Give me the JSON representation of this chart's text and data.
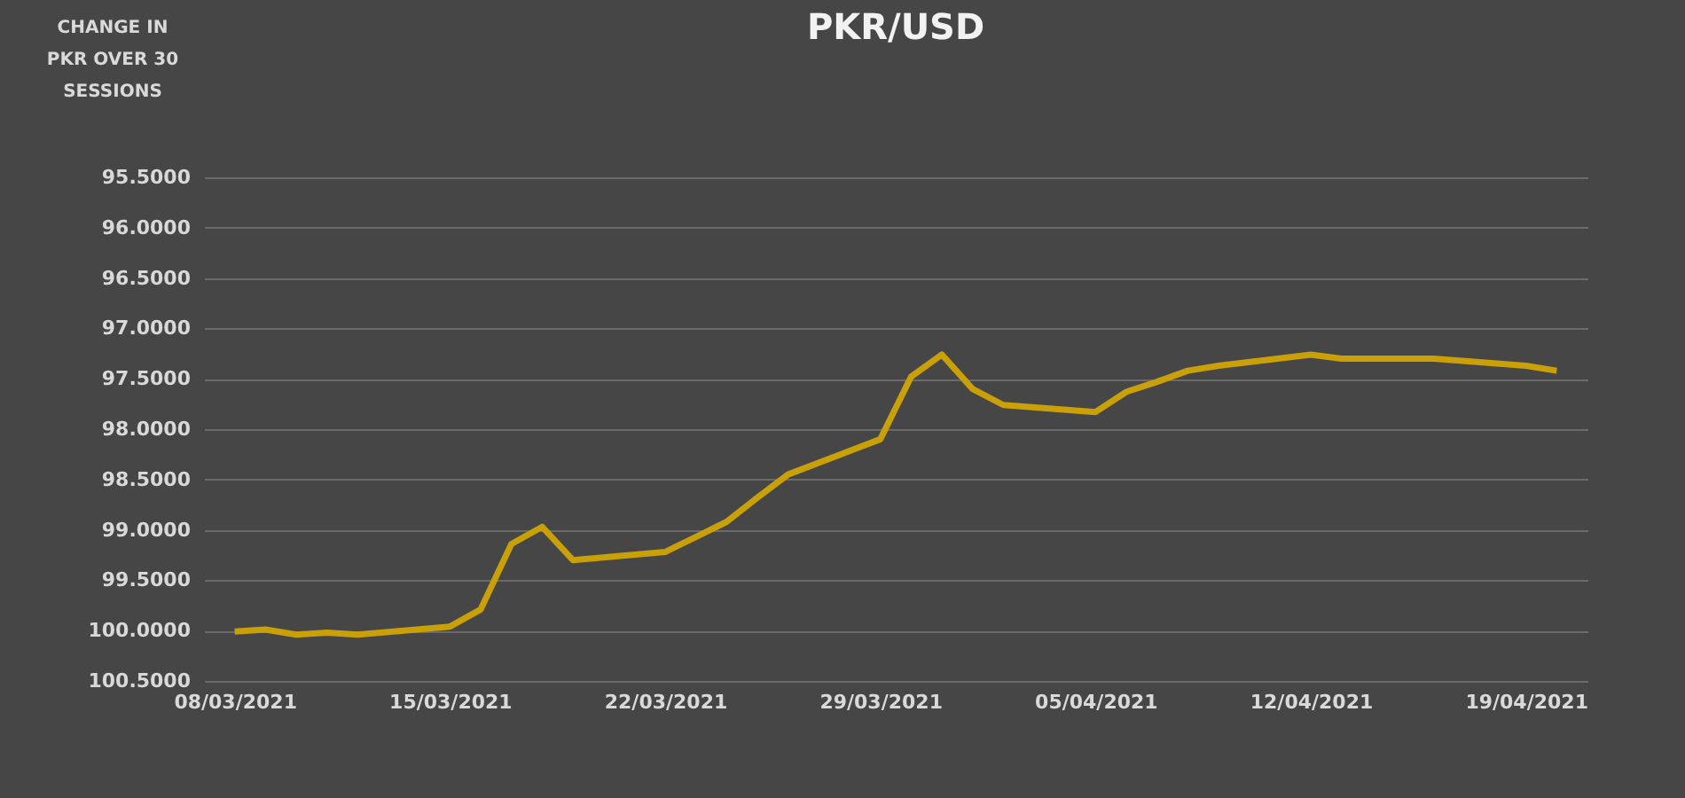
{
  "chart_data": {
    "type": "line",
    "title": "PKR/USD",
    "ylabel": "CHANGE IN PKR OVER 30 SESSIONS",
    "x": [
      "2021-03-08",
      "2021-03-09",
      "2021-03-10",
      "2021-03-11",
      "2021-03-12",
      "2021-03-15",
      "2021-03-16",
      "2021-03-17",
      "2021-03-18",
      "2021-03-19",
      "2021-03-22",
      "2021-03-23",
      "2021-03-24",
      "2021-03-25",
      "2021-03-26",
      "2021-03-29",
      "2021-03-30",
      "2021-03-31",
      "2021-04-01",
      "2021-04-02",
      "2021-04-05",
      "2021-04-06",
      "2021-04-07",
      "2021-04-08",
      "2021-04-09",
      "2021-04-12",
      "2021-04-13",
      "2021-04-14",
      "2021-04-15",
      "2021-04-16",
      "2021-04-19",
      "2021-04-20"
    ],
    "series": [
      {
        "color": "#c9a008",
        "values": [
          100.01,
          99.99,
          100.04,
          100.02,
          100.04,
          99.96,
          99.79,
          99.14,
          98.97,
          99.3,
          99.22,
          99.07,
          98.92,
          98.68,
          98.45,
          98.1,
          97.48,
          97.26,
          97.6,
          97.76,
          97.83,
          97.63,
          97.53,
          97.42,
          97.37,
          97.26,
          97.3,
          97.3,
          97.3,
          97.3,
          97.37,
          97.42
        ]
      }
    ],
    "xlim": [
      "2021-03-07",
      "2021-04-21"
    ],
    "xticks": [
      {
        "value": "2021-03-08",
        "label": "08/03/2021"
      },
      {
        "value": "2021-03-15",
        "label": "15/03/2021"
      },
      {
        "value": "2021-03-22",
        "label": "22/03/2021"
      },
      {
        "value": "2021-03-29",
        "label": "29/03/2021"
      },
      {
        "value": "2021-04-05",
        "label": "05/04/2021"
      },
      {
        "value": "2021-04-12",
        "label": "12/04/2021"
      },
      {
        "value": "2021-04-19",
        "label": "19/04/2021"
      }
    ],
    "ylim": [
      100.5,
      95.5
    ],
    "yticks": [
      {
        "value": 95.5,
        "label": "95.5000"
      },
      {
        "value": 96.0,
        "label": "96.0000"
      },
      {
        "value": 96.5,
        "label": "96.5000"
      },
      {
        "value": 97.0,
        "label": "97.0000"
      },
      {
        "value": 97.5,
        "label": "97.5000"
      },
      {
        "value": 98.0,
        "label": "98.0000"
      },
      {
        "value": 98.5,
        "label": "98.5000"
      },
      {
        "value": 99.0,
        "label": "99.0000"
      },
      {
        "value": 99.5,
        "label": "99.5000"
      },
      {
        "value": 100.0,
        "label": "100.0000"
      },
      {
        "value": 100.5,
        "label": "100.5000"
      }
    ],
    "grid": "y",
    "marker": "none",
    "line_style": "solid"
  }
}
